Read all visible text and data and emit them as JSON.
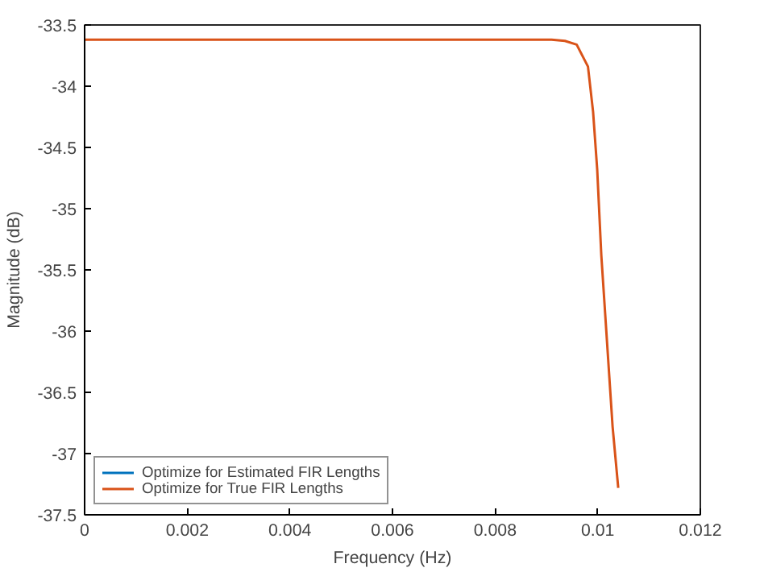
{
  "chart_data": {
    "type": "line",
    "xlabel": "Frequency (Hz)",
    "ylabel": "Magnitude (dB)",
    "x": [
      0,
      0.002,
      0.004,
      0.006,
      0.008,
      0.0091,
      0.00936,
      0.00959,
      0.00981,
      0.00991,
      0.00999,
      0.01007,
      0.01018,
      0.01029,
      0.0104
    ],
    "series": [
      {
        "name": "Optimize for Estimated FIR Lengths",
        "color": "#0072bd",
        "values": [
          null,
          null,
          null,
          null,
          null,
          null,
          null,
          null,
          null,
          null,
          null,
          null,
          null,
          null,
          null
        ]
      },
      {
        "name": "Optimize for True FIR Lengths",
        "color": "#d95319",
        "values": [
          -33.62,
          -33.62,
          -33.62,
          -33.62,
          -33.62,
          -33.62,
          -33.63,
          -33.66,
          -33.84,
          -34.21,
          -34.68,
          -35.38,
          -36.08,
          -36.78,
          -37.28
        ]
      }
    ],
    "xlim": [
      0,
      0.012
    ],
    "xticks": [
      0,
      0.002,
      0.004,
      0.006,
      0.008,
      0.01,
      0.012
    ],
    "ylim": [
      -37.5,
      -33.5
    ],
    "yticks": [
      -37.5,
      -37,
      -36.5,
      -36,
      -35.5,
      -35,
      -34.5,
      -34,
      -33.5
    ],
    "grid": false,
    "legend": "bottom left",
    "line_style": "solid",
    "marker": "none"
  }
}
